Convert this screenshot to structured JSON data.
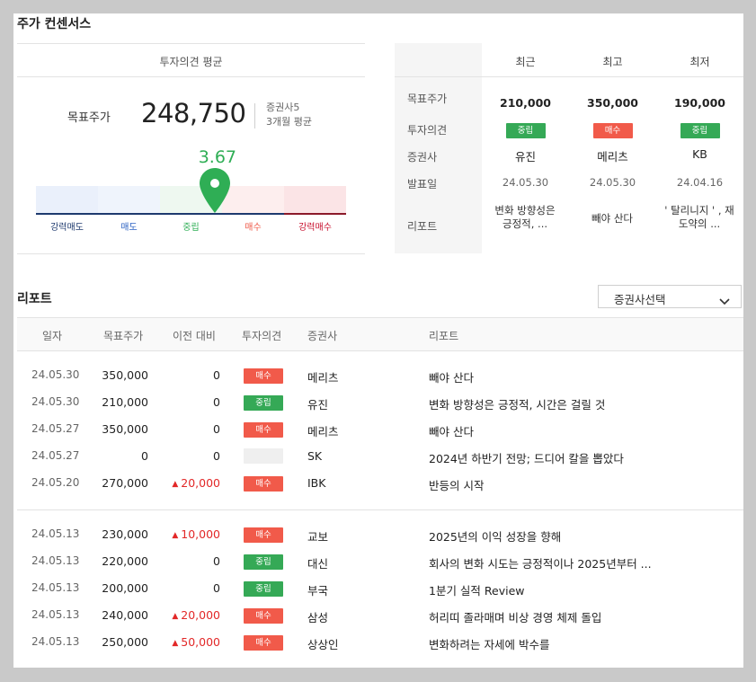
{
  "consensus": {
    "title": "주가 컨센서스",
    "avg_header": "투자의견 평균",
    "target_label": "목표주가",
    "target_value": "248,750",
    "broker_count": "증권사5",
    "period": "3개월 평균",
    "score": "3.67",
    "score_value": 3.67,
    "scale": [
      {
        "label": "강력매도",
        "bg": "#eaf0fb",
        "color": "#1e3a6e"
      },
      {
        "label": "매도",
        "bg": "#eff4fc",
        "color": "#2f64c4"
      },
      {
        "label": "중립",
        "bg": "#eef8f0",
        "color": "#2fae55"
      },
      {
        "label": "매수",
        "bg": "#fdeeee",
        "color": "#ef5a4a"
      },
      {
        "label": "강력매수",
        "bg": "#fbe4e6",
        "color": "#c8102e"
      }
    ],
    "colors": {
      "pin": "#2fae55",
      "axis": "#1e3a6e"
    }
  },
  "recent": {
    "columns": [
      "최근",
      "최고",
      "최저"
    ],
    "row_labels": {
      "target": "목표주가",
      "opinion": "투자의견",
      "broker": "증권사",
      "date": "발표일",
      "report": "리포트"
    },
    "items": [
      {
        "target": "210,000",
        "opinion": "중립",
        "opinion_type": "neutral",
        "broker": "유진",
        "date": "24.05.30",
        "report": "변화 방향성은 긍정적, ..."
      },
      {
        "target": "350,000",
        "opinion": "매수",
        "opinion_type": "buy",
        "broker": "메리츠",
        "date": "24.05.30",
        "report": "빼야 산다"
      },
      {
        "target": "190,000",
        "opinion": "중립",
        "opinion_type": "neutral",
        "broker": "KB",
        "date": "24.04.16",
        "report": "' 탈리니지 ' , 재도약의 ..."
      }
    ]
  },
  "reports": {
    "title": "리포트",
    "select_label": "증권사선택",
    "headers": {
      "date": "일자",
      "target": "목표주가",
      "prev": "이전 대비",
      "opinion": "투자의견",
      "broker": "증권사",
      "report": "리포트"
    },
    "rows": [
      {
        "date": "24.05.30",
        "target": "350,000",
        "prev": "0",
        "up": false,
        "opinion": "매수",
        "opinion_type": "buy",
        "broker": "메리츠",
        "report": "빼야 산다"
      },
      {
        "date": "24.05.30",
        "target": "210,000",
        "prev": "0",
        "up": false,
        "opinion": "중립",
        "opinion_type": "neutral",
        "broker": "유진",
        "report": "변화 방향성은 긍정적, 시간은 걸릴 것"
      },
      {
        "date": "24.05.27",
        "target": "350,000",
        "prev": "0",
        "up": false,
        "opinion": "매수",
        "opinion_type": "buy",
        "broker": "메리츠",
        "report": "빼야 산다"
      },
      {
        "date": "24.05.27",
        "target": "0",
        "prev": "0",
        "up": false,
        "opinion": "",
        "opinion_type": "none",
        "broker": "SK",
        "report": "2024년 하반기 전망; 드디어 칼을 뽑았다"
      },
      {
        "date": "24.05.20",
        "target": "270,000",
        "prev": "20,000",
        "up": true,
        "opinion": "매수",
        "opinion_type": "buy",
        "broker": "IBK",
        "report": "반등의 시작"
      },
      {
        "date": "24.05.13",
        "target": "230,000",
        "prev": "10,000",
        "up": true,
        "opinion": "매수",
        "opinion_type": "buy",
        "broker": "교보",
        "report": "2025년의 이익 성장을 향해"
      },
      {
        "date": "24.05.13",
        "target": "220,000",
        "prev": "0",
        "up": false,
        "opinion": "중립",
        "opinion_type": "neutral",
        "broker": "대신",
        "report": "회사의 변화 시도는 긍정적이나 2025년부터 ..."
      },
      {
        "date": "24.05.13",
        "target": "200,000",
        "prev": "0",
        "up": false,
        "opinion": "중립",
        "opinion_type": "neutral",
        "broker": "부국",
        "report": "1분기 실적 Review"
      },
      {
        "date": "24.05.13",
        "target": "240,000",
        "prev": "20,000",
        "up": true,
        "opinion": "매수",
        "opinion_type": "buy",
        "broker": "삼성",
        "report": "허리띠 졸라매며 비상 경영 체제 돌입"
      },
      {
        "date": "24.05.13",
        "target": "250,000",
        "prev": "50,000",
        "up": true,
        "opinion": "매수",
        "opinion_type": "buy",
        "broker": "상상인",
        "report": "변화하려는 자세에 박수를"
      }
    ],
    "up_marker": "▲"
  }
}
